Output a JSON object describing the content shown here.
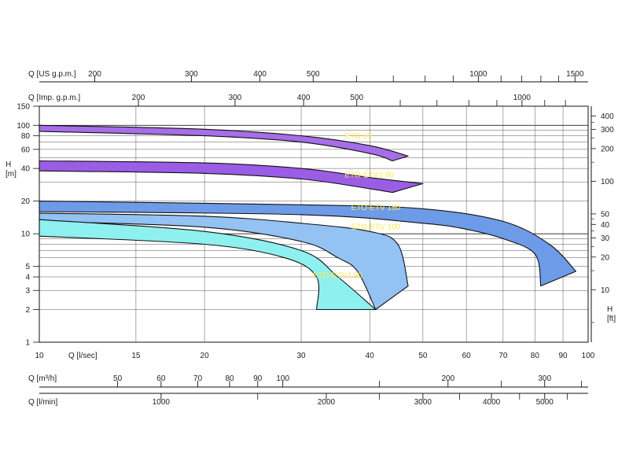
{
  "chart_data": {
    "type": "area",
    "title": "",
    "xaxis_main": {
      "label": "Q   [l/sec]",
      "scale": "log",
      "range": [
        10,
        100
      ],
      "ticks": [
        10,
        15,
        20,
        30,
        40,
        50,
        60,
        70,
        80,
        90,
        100
      ]
    },
    "yaxis_left": {
      "label": "H\n[m]",
      "label_lines": [
        "H",
        "[m]"
      ],
      "scale": "log",
      "range": [
        1,
        150
      ],
      "ticks": [
        1,
        2,
        3,
        4,
        5,
        10,
        20,
        40,
        60,
        80,
        100,
        150
      ]
    },
    "yaxis_right": {
      "label_lines": [
        "H",
        "[ft]"
      ],
      "ticks": [
        10,
        20,
        30,
        40,
        50,
        100,
        200,
        300,
        400
      ],
      "m_per_unit": 0.3048
    },
    "top_axes": [
      {
        "label": "Q [US g.p.m.]",
        "liters_per_sec_per_unit": 0.06309,
        "labeled_ticks": [
          200,
          300,
          400,
          500,
          1000,
          1500
        ],
        "minor_ticks": [
          600,
          700,
          800,
          900,
          1100,
          1200,
          1300,
          1400
        ]
      },
      {
        "label": "Q [Imp. g.p.m.]",
        "liters_per_sec_per_unit": 0.07577,
        "labeled_ticks": [
          200,
          300,
          400,
          500,
          1000
        ],
        "minor_ticks": [
          600,
          700,
          800,
          900,
          1100,
          1200
        ]
      }
    ],
    "bottom_axes": [
      {
        "label": "Q [m³/h]",
        "liters_per_sec_per_unit": 0.27778,
        "labeled_ticks": [
          50,
          60,
          70,
          80,
          90,
          100,
          200,
          300
        ],
        "minor_ticks": [
          150,
          250,
          350
        ]
      },
      {
        "label": "Q [l/min]",
        "liters_per_sec_per_unit": 0.016667,
        "labeled_ticks": [
          1000,
          2000,
          3000,
          4000,
          5000
        ],
        "minor_ticks": [
          1500,
          2500,
          3500,
          4500,
          5500
        ]
      }
    ],
    "series": [
      {
        "name": "ETO  65",
        "fill": "#a66ee8",
        "label_color": "#ffe84d",
        "label_at": [
          36,
          75
        ],
        "top": [
          [
            10,
            100
          ],
          [
            20,
            92
          ],
          [
            30,
            80
          ],
          [
            40,
            65
          ],
          [
            47,
            52
          ]
        ],
        "bottom": [
          [
            10,
            88
          ],
          [
            20,
            80
          ],
          [
            30,
            70
          ],
          [
            40,
            55
          ],
          [
            44,
            47
          ]
        ]
      },
      {
        "name": "ETO-ETV2 80",
        "fill": "#9b5de5",
        "label_color": "#ffe84d",
        "label_at": [
          36,
          33
        ],
        "top": [
          [
            10,
            47
          ],
          [
            20,
            45
          ],
          [
            30,
            40
          ],
          [
            40,
            33
          ],
          [
            50,
            29
          ]
        ],
        "bottom": [
          [
            10,
            38
          ],
          [
            20,
            36
          ],
          [
            30,
            32
          ],
          [
            40,
            26
          ],
          [
            44,
            24
          ]
        ]
      },
      {
        "name": "ETO-ETV 150",
        "fill": "#6e9be8",
        "label_color": "#ffe84d",
        "label_at": [
          37,
          16.5
        ],
        "top": [
          [
            10,
            20
          ],
          [
            30,
            18.5
          ],
          [
            50,
            17
          ],
          [
            70,
            13
          ],
          [
            85,
            8
          ],
          [
            95,
            4.5
          ]
        ],
        "bottom": [
          [
            10,
            16
          ],
          [
            30,
            15
          ],
          [
            50,
            12.5
          ],
          [
            60,
            11
          ],
          [
            70,
            9
          ],
          [
            80,
            6.5
          ],
          [
            82,
            3.3
          ]
        ]
      },
      {
        "name": "ETO-ETV 100",
        "fill": "#93c2f3",
        "label_color": "#ffe84d",
        "label_at": [
          37,
          11
        ],
        "top": [
          [
            10,
            15.5
          ],
          [
            20,
            14.5
          ],
          [
            30,
            12.5
          ],
          [
            40,
            10.5
          ],
          [
            45,
            8
          ],
          [
            47,
            3.3
          ]
        ],
        "bottom": [
          [
            10,
            13
          ],
          [
            20,
            11.5
          ],
          [
            30,
            8.5
          ],
          [
            35,
            6
          ],
          [
            38,
            4.5
          ],
          [
            41,
            2
          ]
        ]
      },
      {
        "name": "ETO-ETV4 80",
        "fill": "#8ff0f0",
        "label_color": "#ffe84d",
        "label_at": [
          31.5,
          3.9
        ],
        "top": [
          [
            10,
            13.5
          ],
          [
            20,
            10.5
          ],
          [
            30,
            7
          ],
          [
            35,
            4
          ],
          [
            41,
            2
          ]
        ],
        "bottom": [
          [
            10,
            9.5
          ],
          [
            20,
            8
          ],
          [
            28,
            6
          ],
          [
            32,
            4
          ],
          [
            32,
            2
          ]
        ]
      }
    ],
    "grid": true
  }
}
